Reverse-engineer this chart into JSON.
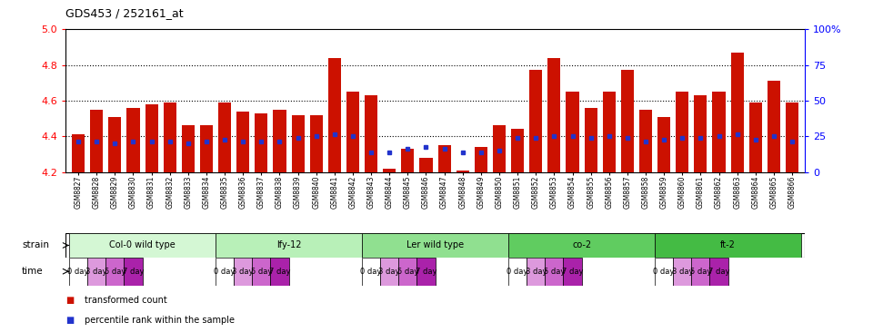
{
  "title": "GDS453 / 252161_at",
  "ylim": [
    4.2,
    5.0
  ],
  "yticks": [
    4.2,
    4.4,
    4.6,
    4.8,
    5.0
  ],
  "right_yticks": [
    0,
    25,
    50,
    75,
    100
  ],
  "right_ylabels": [
    "0",
    "25",
    "50",
    "75",
    "100%"
  ],
  "samples": [
    "GSM8827",
    "GSM8828",
    "GSM8829",
    "GSM8830",
    "GSM8831",
    "GSM8832",
    "GSM8833",
    "GSM8834",
    "GSM8835",
    "GSM8836",
    "GSM8837",
    "GSM8838",
    "GSM8839",
    "GSM8840",
    "GSM8841",
    "GSM8842",
    "GSM8843",
    "GSM8844",
    "GSM8845",
    "GSM8846",
    "GSM8847",
    "GSM8848",
    "GSM8849",
    "GSM8850",
    "GSM8851",
    "GSM8852",
    "GSM8853",
    "GSM8854",
    "GSM8855",
    "GSM8856",
    "GSM8857",
    "GSM8858",
    "GSM8859",
    "GSM8860",
    "GSM8861",
    "GSM8862",
    "GSM8863",
    "GSM8864",
    "GSM8865",
    "GSM8866"
  ],
  "bar_values": [
    4.41,
    4.55,
    4.51,
    4.56,
    4.58,
    4.59,
    4.46,
    4.46,
    4.59,
    4.54,
    4.53,
    4.55,
    4.52,
    4.52,
    4.84,
    4.65,
    4.63,
    4.22,
    4.33,
    4.28,
    4.35,
    4.21,
    4.34,
    4.46,
    4.44,
    4.77,
    4.84,
    4.65,
    4.56,
    4.65,
    4.77,
    4.55,
    4.51,
    4.65,
    4.63,
    4.65,
    4.87,
    4.59,
    4.71,
    4.59
  ],
  "percentile_values": [
    4.37,
    4.37,
    4.36,
    4.37,
    4.37,
    4.37,
    4.36,
    4.37,
    4.38,
    4.37,
    4.37,
    4.37,
    4.39,
    4.4,
    4.41,
    4.4,
    4.31,
    4.31,
    4.33,
    4.34,
    4.33,
    4.31,
    4.31,
    4.32,
    4.39,
    4.39,
    4.4,
    4.4,
    4.39,
    4.4,
    4.39,
    4.37,
    4.38,
    4.39,
    4.39,
    4.4,
    4.41,
    4.38,
    4.4,
    4.37
  ],
  "strains": [
    {
      "label": "Col-0 wild type",
      "start": 0,
      "end": 8,
      "color": "#d4f7d4"
    },
    {
      "label": "lfy-12",
      "start": 8,
      "end": 16,
      "color": "#b8f0b8"
    },
    {
      "label": "Ler wild type",
      "start": 16,
      "end": 24,
      "color": "#90e090"
    },
    {
      "label": "co-2",
      "start": 24,
      "end": 32,
      "color": "#60cc60"
    },
    {
      "label": "ft-2",
      "start": 32,
      "end": 40,
      "color": "#44bb44"
    }
  ],
  "time_labels": [
    "0 day",
    "3 day",
    "5 day",
    "7 day"
  ],
  "time_colors": [
    "#ffffff",
    "#dd99dd",
    "#cc66cc",
    "#aa22aa"
  ],
  "bar_color": "#cc1100",
  "percentile_color": "#2233cc",
  "baseline": 4.2,
  "plot_bg": "#ffffff"
}
